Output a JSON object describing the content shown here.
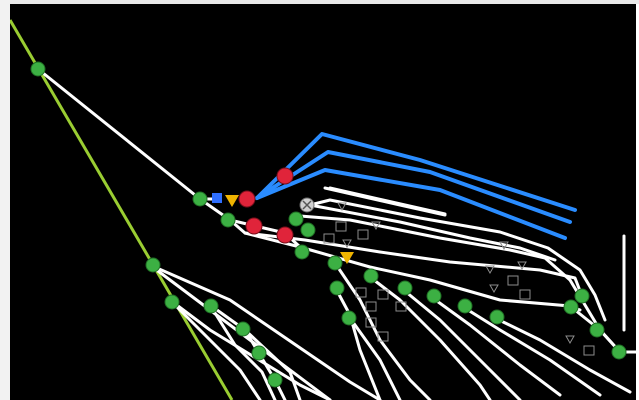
{
  "diagram": {
    "description": "",
    "colors": {
      "background": "#000000",
      "track": "#ffffff",
      "platform_track": "#2a8cff",
      "boundary_line": "#9acd32",
      "node_green": "#3cb043",
      "node_red": "#e0243a",
      "node_gray": "#cfcfcf",
      "marker_orange": "#f0b400",
      "marker_blue": "#2f6fff",
      "symbol_outline": "#8c8c8c"
    },
    "icons": {
      "green_node": "green-node-icon",
      "red_signal": "red-signal-icon",
      "switch_gray": "gray-switch-icon",
      "orange_triangle": "orange-triangle-icon",
      "blue_square": "blue-square-icon",
      "outline_triangle": "outline-triangle-icon",
      "outline_box": "outline-box-icon"
    }
  }
}
